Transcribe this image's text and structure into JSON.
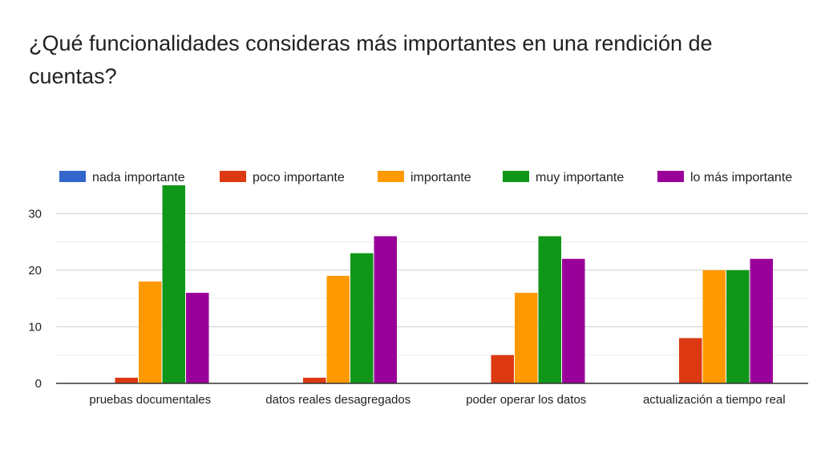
{
  "chart_data": {
    "type": "bar",
    "title": "¿Qué funcionalidades consideras más importantes en una rendición de cuentas?",
    "categories": [
      "pruebas documentales",
      "datos reales desagregados",
      "poder operar los datos",
      "actualización a tiempo real"
    ],
    "series": [
      {
        "name": "nada importante",
        "color": "#3366cc",
        "values": [
          0,
          0,
          0,
          0
        ]
      },
      {
        "name": "poco importante",
        "color": "#dc3912",
        "values": [
          1,
          1,
          5,
          8
        ]
      },
      {
        "name": "importante",
        "color": "#ff9900",
        "values": [
          18,
          19,
          16,
          20
        ]
      },
      {
        "name": "muy importante",
        "color": "#109618",
        "values": [
          35,
          23,
          26,
          20
        ]
      },
      {
        "name": "lo más importante",
        "color": "#990099",
        "values": [
          16,
          26,
          22,
          22
        ]
      }
    ],
    "yticks": [
      0,
      10,
      20,
      30
    ],
    "ylim": [
      0,
      35
    ],
    "grid": true,
    "legend": "top"
  }
}
